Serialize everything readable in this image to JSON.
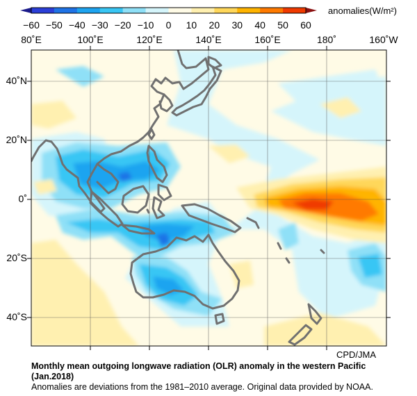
{
  "colorbar": {
    "ticks": [
      "−60",
      "−50",
      "−40",
      "−30",
      "−20",
      "−10",
      "0",
      "10",
      "20",
      "30",
      "40",
      "50",
      "60"
    ],
    "units": "anomalies(W/m²)",
    "colors": [
      "#2b3fd8",
      "#1f73e6",
      "#1ea4f0",
      "#39c6f4",
      "#8fe0f7",
      "#d5f5fb",
      "#fffbe6",
      "#fff0b0",
      "#ffd75a",
      "#ffb400",
      "#ff7a00",
      "#f03a00"
    ]
  },
  "map": {
    "lon_labels": [
      "80˚E",
      "100˚E",
      "120˚E",
      "140˚E",
      "160˚E",
      "180˚",
      "160˚W"
    ],
    "lat_labels": [
      "40˚N",
      "20˚N",
      "0˚",
      "20˚S",
      "40˚S"
    ],
    "coastline_color": "#707070",
    "credit": "CPD/JMA"
  },
  "caption": {
    "title": "Monthly mean outgoing longwave radiation (OLR) anomaly in the western Pacific (Jan.2018)",
    "note": "Anomalies are deviations from the 1981–2010 average. Original data provided by NOAA."
  }
}
